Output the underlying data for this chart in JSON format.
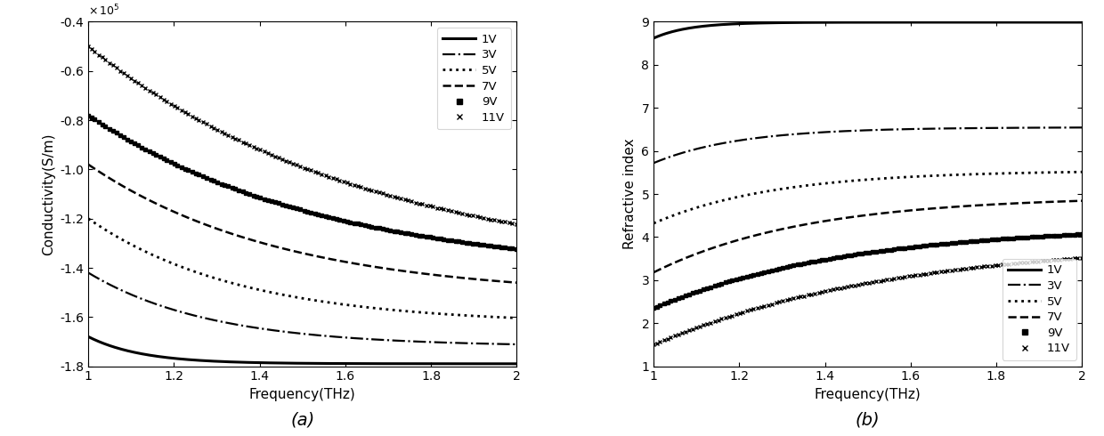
{
  "freq_range": [
    1.0,
    2.0
  ],
  "n_points": 400,
  "conductivity": {
    "ylabel": "Conductivity(S/m)",
    "xlabel": "Frequency(THz)",
    "ylim": [
      -180000.0,
      -40000.0
    ],
    "yticks": [
      -180000.0,
      -160000.0,
      -140000.0,
      -120000.0,
      -100000.0,
      -80000.0,
      -60000.0,
      -40000.0
    ],
    "ytick_labels": [
      "-1.8",
      "-1.6",
      "-1.4",
      "-1.2",
      "-1.0",
      "-0.8",
      "-0.6",
      "-0.4"
    ],
    "xticks": [
      1.0,
      1.2,
      1.4,
      1.6,
      1.8,
      2.0
    ],
    "xtick_labels": [
      "1",
      "1.2",
      "1.4",
      "1.6",
      "1.8",
      "2"
    ],
    "caption": "(a)",
    "curves": [
      {
        "label": "1V",
        "style": "solid",
        "lw": 2.2,
        "A": -168000.0,
        "B": -179000.0,
        "tau": 8.0
      },
      {
        "label": "3V",
        "style": "dashdot",
        "lw": 1.6,
        "A": -142000.0,
        "B": -172000.0,
        "tau": 3.5
      },
      {
        "label": "5V",
        "style": "dotted",
        "lw": 2.0,
        "A": -120000.0,
        "B": -163000.0,
        "tau": 2.8
      },
      {
        "label": "7V",
        "style": "dashed",
        "lw": 1.8,
        "A": -98000.0,
        "B": -152000.0,
        "tau": 2.2
      },
      {
        "label": "9V",
        "style": "square",
        "lw": 1.4,
        "A": -78000.0,
        "B": -143000.0,
        "tau": 1.8
      },
      {
        "label": "11V",
        "style": "cross",
        "lw": 1.4,
        "A": -50000.0,
        "B": -143000.0,
        "tau": 1.5
      }
    ]
  },
  "refractive": {
    "ylabel": "Refractive index",
    "xlabel": "Frequency(THz)",
    "ylim": [
      1.0,
      9.0
    ],
    "yticks": [
      1,
      2,
      3,
      4,
      5,
      6,
      7,
      8,
      9
    ],
    "xticks": [
      1.0,
      1.2,
      1.4,
      1.6,
      1.8,
      2.0
    ],
    "xtick_labels": [
      "1",
      "1.2",
      "1.4",
      "1.6",
      "1.8",
      "2"
    ],
    "caption": "(b)",
    "curves": [
      {
        "label": "1V",
        "style": "solid",
        "lw": 2.2,
        "A": 8.62,
        "B": 8.99,
        "tau": 12.0
      },
      {
        "label": "3V",
        "style": "dashdot",
        "lw": 1.6,
        "A": 5.72,
        "B": 6.55,
        "tau": 5.0
      },
      {
        "label": "5V",
        "style": "dotted",
        "lw": 2.0,
        "A": 4.32,
        "B": 5.55,
        "tau": 3.5
      },
      {
        "label": "7V",
        "style": "dashed",
        "lw": 1.8,
        "A": 3.18,
        "B": 4.95,
        "tau": 2.8
      },
      {
        "label": "9V",
        "style": "square",
        "lw": 1.4,
        "A": 2.35,
        "B": 4.28,
        "tau": 2.2
      },
      {
        "label": "11V",
        "style": "cross",
        "lw": 1.4,
        "A": 1.5,
        "B": 3.92,
        "tau": 1.8
      }
    ]
  }
}
